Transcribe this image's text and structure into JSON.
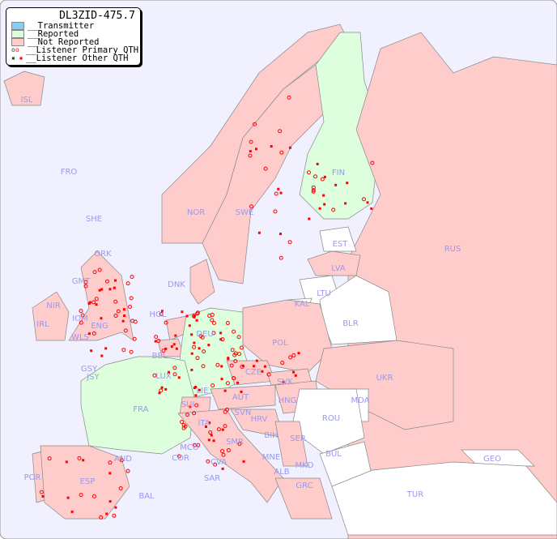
{
  "title": "DL3ZID-475.7",
  "legend": [
    {
      "label": "__Transmitter",
      "color": "#88ccee"
    },
    {
      "label": "__Reported",
      "color": "#ddffdd"
    },
    {
      "label": "__Not Reported",
      "color": "#ffcccc"
    },
    {
      "label": "__Listener Primary QTH",
      "color": "#ff0000"
    },
    {
      "label": "__Listener Other QTH",
      "color": "#ff0000"
    }
  ],
  "colors": {
    "sea": "#f0f0ff",
    "not_reported": "#ffcccc",
    "reported": "#ddffdd",
    "no_data": "#ffffff",
    "label": "#9999ee",
    "listener": "#ff0000"
  },
  "countries": [
    {
      "code": "ISL",
      "status": "not_reported"
    },
    {
      "code": "FRO",
      "status": "not_reported"
    },
    {
      "code": "SHE",
      "status": "not_reported"
    },
    {
      "code": "ORK",
      "status": "not_reported"
    },
    {
      "code": "NOR",
      "status": "not_reported"
    },
    {
      "code": "SWE",
      "status": "not_reported"
    },
    {
      "code": "FIN",
      "status": "reported"
    },
    {
      "code": "RUS",
      "status": "not_reported"
    },
    {
      "code": "EST",
      "status": "no_data"
    },
    {
      "code": "LVA",
      "status": "not_reported"
    },
    {
      "code": "LTU",
      "status": "no_data"
    },
    {
      "code": "KAL",
      "status": "no_data"
    },
    {
      "code": "BLR",
      "status": "no_data"
    },
    {
      "code": "DNK",
      "status": "not_reported"
    },
    {
      "code": "GMT",
      "status": "not_reported"
    },
    {
      "code": "NIR",
      "status": "not_reported"
    },
    {
      "code": "IOM",
      "status": "not_reported"
    },
    {
      "code": "IRL",
      "status": "not_reported"
    },
    {
      "code": "WLS",
      "status": "not_reported"
    },
    {
      "code": "ENG",
      "status": "not_reported"
    },
    {
      "code": "HOL",
      "status": "not_reported"
    },
    {
      "code": "BEL",
      "status": "not_reported"
    },
    {
      "code": "DEU",
      "status": "reported"
    },
    {
      "code": "POL",
      "status": "not_reported"
    },
    {
      "code": "UKR",
      "status": "not_reported"
    },
    {
      "code": "GSY",
      "status": "not_reported"
    },
    {
      "code": "JSY",
      "status": "not_reported"
    },
    {
      "code": "LUX",
      "status": "not_reported"
    },
    {
      "code": "CZE",
      "status": "not_reported"
    },
    {
      "code": "SVK",
      "status": "not_reported"
    },
    {
      "code": "FRA",
      "status": "reported"
    },
    {
      "code": "SUI",
      "status": "not_reported"
    },
    {
      "code": "LIE",
      "status": "not_reported"
    },
    {
      "code": "AUT",
      "status": "not_reported"
    },
    {
      "code": "HNG",
      "status": "not_reported"
    },
    {
      "code": "MDA",
      "status": "no_data"
    },
    {
      "code": "SVN",
      "status": "not_reported"
    },
    {
      "code": "HRV",
      "status": "not_reported"
    },
    {
      "code": "ROU",
      "status": "no_data"
    },
    {
      "code": "ITA",
      "status": "not_reported"
    },
    {
      "code": "BIH",
      "status": "not_reported"
    },
    {
      "code": "SER",
      "status": "not_reported"
    },
    {
      "code": "SMR",
      "status": "not_reported"
    },
    {
      "code": "MCO",
      "status": "not_reported"
    },
    {
      "code": "COR",
      "status": "not_reported"
    },
    {
      "code": "AND",
      "status": "not_reported"
    },
    {
      "code": "CVA",
      "status": "not_reported"
    },
    {
      "code": "MNE",
      "status": "not_reported"
    },
    {
      "code": "BUL",
      "status": "no_data"
    },
    {
      "code": "GEO",
      "status": "no_data"
    },
    {
      "code": "POR",
      "status": "not_reported"
    },
    {
      "code": "ESP",
      "status": "not_reported"
    },
    {
      "code": "ALB",
      "status": "not_reported"
    },
    {
      "code": "MKD",
      "status": "not_reported"
    },
    {
      "code": "SAR",
      "status": "not_reported"
    },
    {
      "code": "BAL",
      "status": "not_reported"
    },
    {
      "code": "GRC",
      "status": "not_reported"
    },
    {
      "code": "TUR",
      "status": "no_data"
    }
  ]
}
